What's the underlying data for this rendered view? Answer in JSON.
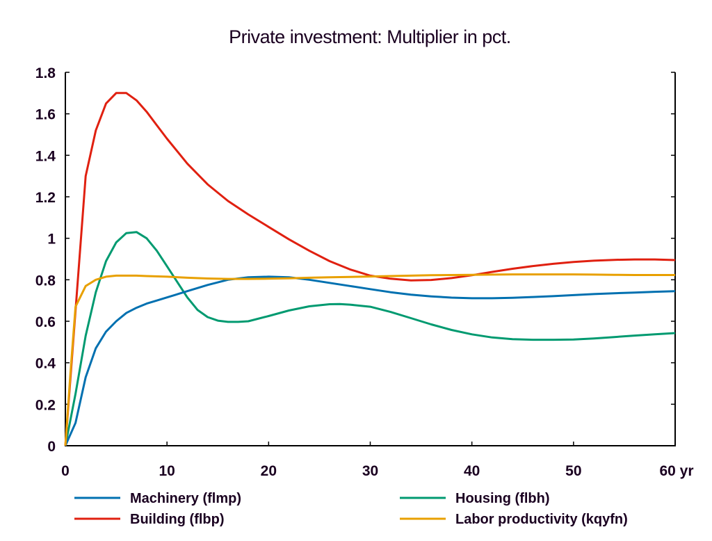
{
  "chart_data": {
    "type": "line",
    "title": "Private investment: Multiplier in pct.",
    "xlabel": "",
    "ylabel": "",
    "x_unit_label": "yr",
    "xlim": [
      0,
      60
    ],
    "ylim": [
      0,
      1.8
    ],
    "x_ticks": [
      0,
      10,
      20,
      30,
      40,
      50,
      60
    ],
    "x_tick_labels": [
      "0",
      "10",
      "20",
      "30",
      "40",
      "50",
      "60 yr"
    ],
    "y_ticks": [
      0,
      0.2,
      0.4,
      0.6,
      0.8,
      1.0,
      1.2,
      1.4,
      1.6,
      1.8
    ],
    "y_tick_labels": [
      "0",
      "0.2",
      "0.4",
      "0.6",
      "0.8",
      "1",
      "1.2",
      "1.4",
      "1.6",
      "1.8"
    ],
    "grid": false,
    "legend_position": "bottom",
    "series": [
      {
        "name": "Machinery (flmp)",
        "color": "#0070b0",
        "x": [
          0,
          1,
          2,
          3,
          4,
          5,
          6,
          7,
          8,
          9,
          10,
          12,
          14,
          16,
          18,
          20,
          22,
          24,
          26,
          28,
          30,
          32,
          34,
          36,
          38,
          40,
          42,
          44,
          46,
          48,
          50,
          52,
          54,
          56,
          58,
          60
        ],
        "values": [
          0,
          0.11,
          0.33,
          0.47,
          0.55,
          0.6,
          0.64,
          0.665,
          0.685,
          0.7,
          0.715,
          0.745,
          0.775,
          0.8,
          0.812,
          0.815,
          0.812,
          0.8,
          0.785,
          0.77,
          0.755,
          0.74,
          0.728,
          0.72,
          0.714,
          0.711,
          0.711,
          0.713,
          0.717,
          0.721,
          0.726,
          0.731,
          0.735,
          0.738,
          0.742,
          0.745
        ]
      },
      {
        "name": "Building (flbp)",
        "color": "#e02010",
        "x": [
          0,
          1,
          2,
          3,
          4,
          5,
          6,
          7,
          8,
          9,
          10,
          12,
          14,
          16,
          18,
          20,
          22,
          24,
          26,
          28,
          30,
          32,
          34,
          36,
          38,
          40,
          42,
          44,
          46,
          48,
          50,
          52,
          54,
          56,
          58,
          60
        ],
        "values": [
          0,
          0.65,
          1.3,
          1.52,
          1.65,
          1.7,
          1.7,
          1.665,
          1.61,
          1.545,
          1.48,
          1.36,
          1.26,
          1.18,
          1.115,
          1.055,
          0.995,
          0.94,
          0.89,
          0.85,
          0.82,
          0.805,
          0.797,
          0.799,
          0.808,
          0.822,
          0.838,
          0.853,
          0.866,
          0.877,
          0.886,
          0.892,
          0.896,
          0.898,
          0.898,
          0.895
        ]
      },
      {
        "name": "Housing (flbh)",
        "color": "#009a70",
        "x": [
          0,
          1,
          2,
          3,
          4,
          5,
          6,
          7,
          8,
          9,
          10,
          11,
          12,
          13,
          14,
          15,
          16,
          17,
          18,
          20,
          22,
          24,
          26,
          27,
          28,
          30,
          32,
          34,
          36,
          38,
          40,
          42,
          44,
          46,
          48,
          50,
          52,
          54,
          56,
          58,
          60
        ],
        "values": [
          0,
          0.25,
          0.53,
          0.74,
          0.89,
          0.98,
          1.025,
          1.03,
          1.0,
          0.94,
          0.865,
          0.79,
          0.715,
          0.655,
          0.62,
          0.603,
          0.597,
          0.597,
          0.6,
          0.625,
          0.652,
          0.672,
          0.682,
          0.683,
          0.68,
          0.67,
          0.645,
          0.615,
          0.585,
          0.558,
          0.537,
          0.522,
          0.514,
          0.511,
          0.511,
          0.512,
          0.517,
          0.524,
          0.531,
          0.537,
          0.543
        ]
      },
      {
        "name": "Labor productivity (kqyfn)",
        "color": "#e8a000",
        "x": [
          0,
          0.5,
          1,
          2,
          3,
          4,
          5,
          6,
          7,
          8,
          10,
          12,
          14,
          16,
          18,
          20,
          22,
          24,
          26,
          28,
          30,
          32,
          34,
          36,
          38,
          40,
          42,
          44,
          46,
          48,
          50,
          52,
          54,
          56,
          58,
          60
        ],
        "values": [
          0,
          0.35,
          0.67,
          0.77,
          0.8,
          0.815,
          0.82,
          0.82,
          0.82,
          0.818,
          0.815,
          0.81,
          0.806,
          0.804,
          0.804,
          0.805,
          0.807,
          0.81,
          0.812,
          0.814,
          0.816,
          0.818,
          0.82,
          0.822,
          0.823,
          0.824,
          0.825,
          0.826,
          0.826,
          0.826,
          0.826,
          0.825,
          0.824,
          0.823,
          0.823,
          0.823
        ]
      }
    ]
  }
}
